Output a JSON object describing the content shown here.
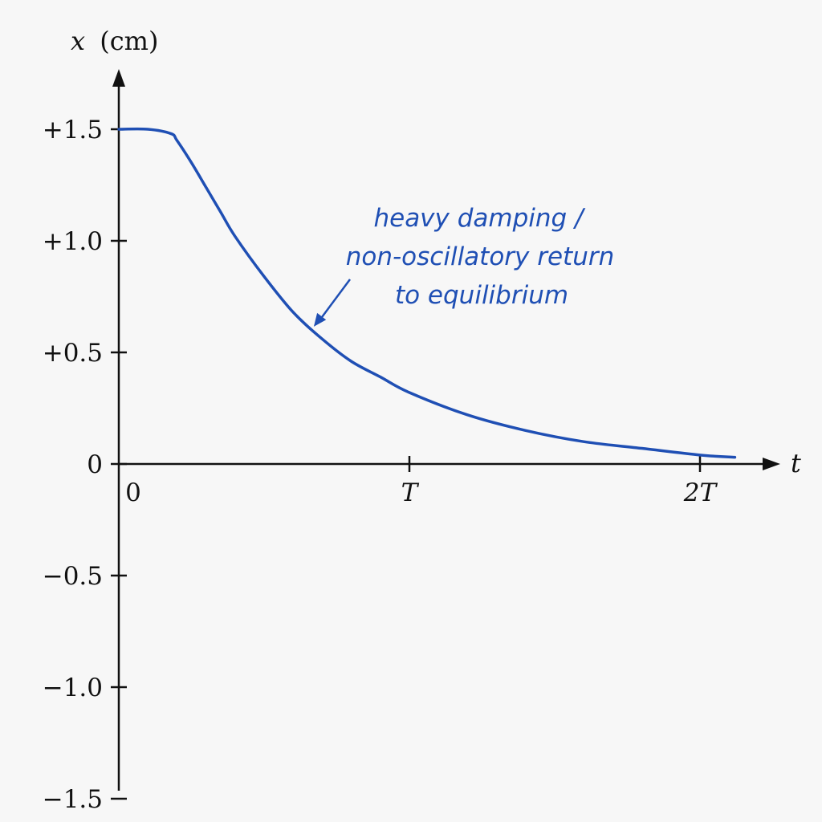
{
  "chart_data": {
    "type": "line",
    "title": "",
    "xlabel": "t",
    "ylabel_var": "x",
    "ylabel_unit": "(cm)",
    "xlim": [
      0,
      2.12
    ],
    "ylim": [
      -1.5,
      1.5
    ],
    "x_ticks": [
      {
        "value": 0,
        "label": "0"
      },
      {
        "value": 1,
        "label": "T"
      },
      {
        "value": 2,
        "label": "2T"
      }
    ],
    "y_ticks": [
      {
        "value": 1.5,
        "label": "+1.5"
      },
      {
        "value": 1.0,
        "label": "+1.0"
      },
      {
        "value": 0.5,
        "label": "+0.5"
      },
      {
        "value": 0,
        "label": "0"
      },
      {
        "value": -0.5,
        "label": "−0.5"
      },
      {
        "value": -1.0,
        "label": "−1.0"
      },
      {
        "value": -1.5,
        "label": "−1.5"
      }
    ],
    "grid": false,
    "series": [
      {
        "color": "#1f4fb4",
        "x": [
          0,
          0.1,
          0.18,
          0.2,
          0.25,
          0.3,
          0.35,
          0.4,
          0.5,
          0.6,
          0.7,
          0.8,
          0.9,
          1.0,
          1.2,
          1.4,
          1.6,
          1.8,
          2.0,
          2.12
        ],
        "y": [
          1.5,
          1.5,
          1.48,
          1.45,
          1.35,
          1.24,
          1.13,
          1.02,
          0.84,
          0.68,
          0.56,
          0.46,
          0.39,
          0.32,
          0.22,
          0.15,
          0.1,
          0.07,
          0.04,
          0.03
        ]
      }
    ],
    "annotation": {
      "lines": [
        "heavy damping /",
        "non-oscillatory return",
        "to equilibrium"
      ],
      "color": "#1f4fb4",
      "arrow_to": [
        0.66,
        0.63
      ]
    }
  }
}
